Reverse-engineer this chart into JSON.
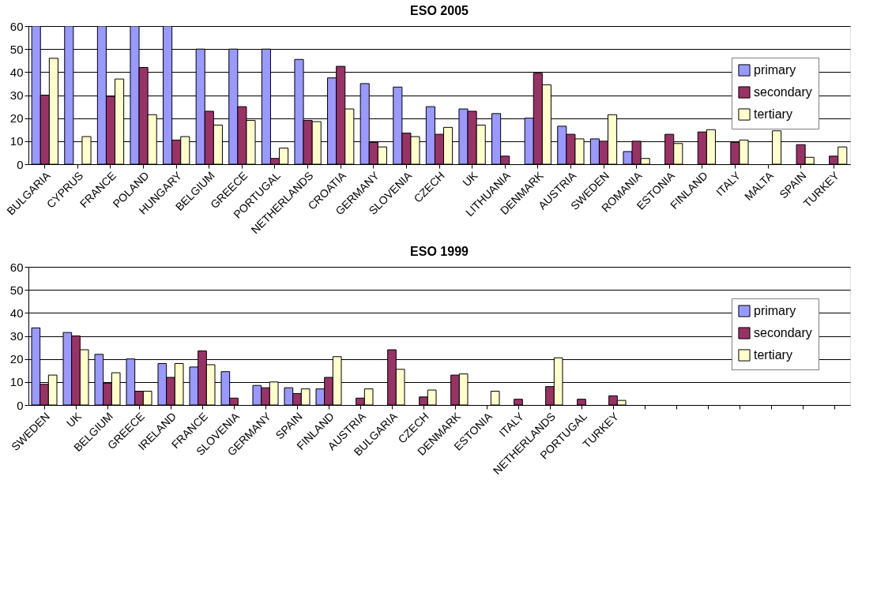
{
  "chart_data": [
    {
      "type": "bar",
      "title": "ESO 2005",
      "categories": [
        "BULGARIA",
        "CYPRUS",
        "FRANCE",
        "POLAND",
        "HUNGARY",
        "BELGIUM",
        "GREECE",
        "PORTUGAL",
        "NETHERLANDS",
        "CROATIA",
        "GERMANY",
        "SLOVENIA",
        "CZECH",
        "UK",
        "LITHUANIA",
        "DENMARK",
        "AUSTRIA",
        "SWEDEN",
        "ROMANIA",
        "ESTONIA",
        "FINLAND",
        "ITALY",
        "MALTA",
        "SPAIN",
        "TURKEY"
      ],
      "series": [
        {
          "name": "primary",
          "color": "#9999ff",
          "values": [
            60,
            60,
            60,
            60,
            60,
            50,
            50,
            50,
            45.5,
            37.5,
            35,
            33.5,
            25,
            24,
            22,
            20,
            16.5,
            11,
            5.5,
            null,
            null,
            null,
            null,
            null,
            null
          ]
        },
        {
          "name": "secondary",
          "color": "#993366",
          "values": [
            30,
            null,
            29.5,
            42,
            10.5,
            23,
            25,
            2.5,
            19,
            42.5,
            9.5,
            13.5,
            13,
            23,
            3.5,
            39.5,
            13,
            10,
            10,
            13,
            14,
            9.5,
            null,
            8.5,
            3.5
          ]
        },
        {
          "name": "tertiary",
          "color": "#ffffcc",
          "values": [
            46,
            12,
            37,
            21.5,
            12,
            17,
            19,
            7,
            18.5,
            24,
            7.5,
            12,
            16,
            17,
            null,
            34.5,
            11,
            21.5,
            2.5,
            9,
            15,
            10.5,
            14.5,
            3,
            7.5
          ]
        }
      ],
      "ylim": [
        0,
        60
      ],
      "yticks": [
        0,
        10,
        20,
        30,
        40,
        50,
        60
      ],
      "grid": "y",
      "legend": "top right"
    },
    {
      "type": "bar",
      "title": "ESO 1999",
      "categories": [
        "SWEDEN",
        "UK",
        "BELGIUM",
        "GREECE",
        "IRELAND",
        "FRANCE",
        "SLOVENIA",
        "GERMANY",
        "SPAIN",
        "FINLAND",
        "AUSTRIA",
        "BULGARIA",
        "CZECH",
        "DENMARK",
        "ESTONIA",
        "ITALY",
        "NETHERLANDS",
        "PORTUGAL",
        "TURKEY",
        null,
        null,
        null,
        null,
        null,
        null,
        null
      ],
      "series": [
        {
          "name": "primary",
          "color": "#9999ff",
          "values": [
            33.5,
            31.5,
            22,
            20,
            18,
            16.5,
            14.5,
            8.5,
            7.5,
            7,
            null,
            null,
            null,
            null,
            null,
            null,
            null,
            null,
            null,
            null,
            null,
            null,
            null,
            null,
            null,
            null
          ]
        },
        {
          "name": "secondary",
          "color": "#993366",
          "values": [
            9,
            30,
            9.5,
            6,
            12,
            23.5,
            3,
            7.5,
            5,
            12,
            3,
            24,
            3.5,
            13,
            null,
            2.5,
            8,
            2.5,
            4,
            null,
            null,
            null,
            null,
            null,
            null,
            null
          ]
        },
        {
          "name": "tertiary",
          "color": "#ffffcc",
          "values": [
            13,
            24,
            14,
            6,
            18,
            17.5,
            null,
            10,
            7,
            21,
            7,
            15.5,
            6.5,
            13.5,
            6,
            null,
            20.5,
            null,
            2,
            null,
            null,
            null,
            null,
            null,
            null,
            null
          ]
        }
      ],
      "ylim": [
        0,
        60
      ],
      "yticks": [
        0,
        10,
        20,
        30,
        40,
        50,
        60
      ],
      "grid": "y",
      "legend": "top right"
    }
  ]
}
